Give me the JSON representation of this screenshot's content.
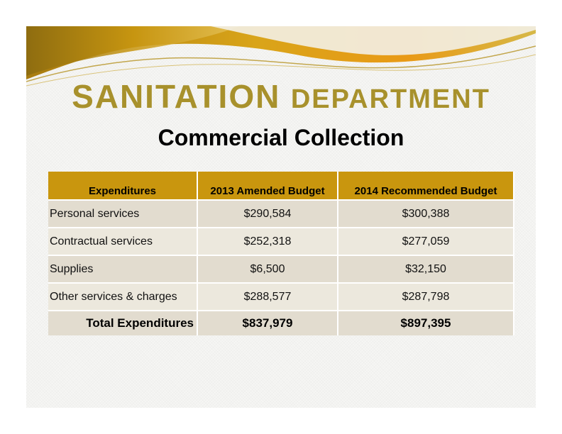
{
  "title": {
    "word1": "SANITATION",
    "word2": "DEPARTMENT"
  },
  "subtitle": "Commercial Collection",
  "table": {
    "headers": [
      "Expenditures",
      "2013 Amended Budget",
      "2014 Recommended Budget"
    ],
    "rows": [
      {
        "label": "Personal services",
        "y2013": "$290,584",
        "y2014": "$300,388"
      },
      {
        "label": "Contractual services",
        "y2013": "$252,318",
        "y2014": "$277,059"
      },
      {
        "label": "Supplies",
        "y2013": "$6,500",
        "y2014": "$32,150"
      },
      {
        "label": "Other services & charges",
        "y2013": "$288,577",
        "y2014": "$287,798"
      }
    ],
    "total": {
      "label": "Total Expenditures",
      "y2013": "$837,979",
      "y2014": "$897,395"
    }
  },
  "colors": {
    "title": "#a8912c",
    "header_bg": "#c9960e",
    "row_odd": "#e2dccf",
    "row_even": "#ece8dd"
  }
}
